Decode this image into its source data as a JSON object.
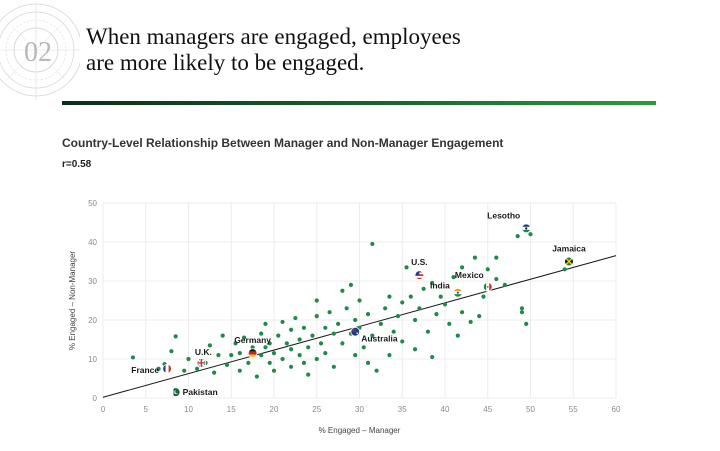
{
  "section_number": "02",
  "headline_lines": [
    "When managers are engaged, employees",
    "are more likely to be engaged."
  ],
  "colors": {
    "accent_dark": "#0b2d17",
    "accent_green": "#2f9a3c",
    "point": "#1f8a4c",
    "trendline": "#1a1a1a"
  },
  "chart_data": {
    "type": "scatter",
    "title": "Country-Level Relationship Between Manager and Non-Manager Engagement",
    "subtitle": "r=0.58",
    "xlabel": "% Engaged – Manager",
    "ylabel": "% Engaged – Non-Manager",
    "xlim": [
      0,
      60
    ],
    "ylim": [
      0,
      50
    ],
    "xticks": [
      0,
      5,
      10,
      15,
      20,
      25,
      30,
      35,
      40,
      45,
      50,
      55,
      60
    ],
    "yticks": [
      0,
      10,
      20,
      30,
      40,
      50
    ],
    "grid": true,
    "trendline": {
      "x": [
        0,
        60
      ],
      "y": [
        0.2,
        36.5
      ]
    },
    "points": [
      [
        3.5,
        10.4
      ],
      [
        6.5,
        7.5
      ],
      [
        7.2,
        8.7
      ],
      [
        8.0,
        12.0
      ],
      [
        8.5,
        15.8
      ],
      [
        9.5,
        7.0
      ],
      [
        10.0,
        10.0
      ],
      [
        11.0,
        7.5
      ],
      [
        12.0,
        9.0
      ],
      [
        12.5,
        13.5
      ],
      [
        13.0,
        6.5
      ],
      [
        13.5,
        11.0
      ],
      [
        14.0,
        16.0
      ],
      [
        14.5,
        8.5
      ],
      [
        15.0,
        11.0
      ],
      [
        15.5,
        14.0
      ],
      [
        16.0,
        7.0
      ],
      [
        16.0,
        11.5
      ],
      [
        16.5,
        15.5
      ],
      [
        17.0,
        9.0
      ],
      [
        17.5,
        13.0
      ],
      [
        18.0,
        5.5
      ],
      [
        18.5,
        11.0
      ],
      [
        18.5,
        16.5
      ],
      [
        19.0,
        13.0
      ],
      [
        19.0,
        19.0
      ],
      [
        19.5,
        9.0
      ],
      [
        19.5,
        14.0
      ],
      [
        20.0,
        7.0
      ],
      [
        20.0,
        11.5
      ],
      [
        20.5,
        16.0
      ],
      [
        21.0,
        10.0
      ],
      [
        21.0,
        19.5
      ],
      [
        21.5,
        14.0
      ],
      [
        22.0,
        8.0
      ],
      [
        22.0,
        12.5
      ],
      [
        22.0,
        17.5
      ],
      [
        22.5,
        20.5
      ],
      [
        23.0,
        11.0
      ],
      [
        23.0,
        15.0
      ],
      [
        23.5,
        9.0
      ],
      [
        23.5,
        18.0
      ],
      [
        24.0,
        13.0
      ],
      [
        24.0,
        6.0
      ],
      [
        24.5,
        16.0
      ],
      [
        25.0,
        10.0
      ],
      [
        25.0,
        21.0
      ],
      [
        25.0,
        25.0
      ],
      [
        25.5,
        14.0
      ],
      [
        26.0,
        18.0
      ],
      [
        26.0,
        11.5
      ],
      [
        26.5,
        22.0
      ],
      [
        27.0,
        16.5
      ],
      [
        27.0,
        8.0
      ],
      [
        27.5,
        19.0
      ],
      [
        28.0,
        27.5
      ],
      [
        28.0,
        14.0
      ],
      [
        28.5,
        23.0
      ],
      [
        29.0,
        16.5
      ],
      [
        29.0,
        29.0
      ],
      [
        29.5,
        20.0
      ],
      [
        29.5,
        11.0
      ],
      [
        30.0,
        18.0
      ],
      [
        30.0,
        25.0
      ],
      [
        30.5,
        13.0
      ],
      [
        31.0,
        9.0
      ],
      [
        31.0,
        21.5
      ],
      [
        31.5,
        39.5
      ],
      [
        31.5,
        16.0
      ],
      [
        32.0,
        7.0
      ],
      [
        32.5,
        19.0
      ],
      [
        33.0,
        23.0
      ],
      [
        33.5,
        26.0
      ],
      [
        34.0,
        17.0
      ],
      [
        34.5,
        21.0
      ],
      [
        35.0,
        24.5
      ],
      [
        35.0,
        14.5
      ],
      [
        35.5,
        33.5
      ],
      [
        36.0,
        26.0
      ],
      [
        36.5,
        20.0
      ],
      [
        37.0,
        23.0
      ],
      [
        37.5,
        28.0
      ],
      [
        38.0,
        17.0
      ],
      [
        38.5,
        29.5
      ],
      [
        39.0,
        21.5
      ],
      [
        39.5,
        26.0
      ],
      [
        40.0,
        24.0
      ],
      [
        40.5,
        19.0
      ],
      [
        41.0,
        31.0
      ],
      [
        41.5,
        16.0
      ],
      [
        42.0,
        33.5
      ],
      [
        42.0,
        22.0
      ],
      [
        43.0,
        19.5
      ],
      [
        43.5,
        36.0
      ],
      [
        44.0,
        21.0
      ],
      [
        44.5,
        26.0
      ],
      [
        45.0,
        33.0
      ],
      [
        46.0,
        30.5
      ],
      [
        46.0,
        36.0
      ],
      [
        47.0,
        29.0
      ],
      [
        48.5,
        41.5
      ],
      [
        49.0,
        23.0
      ],
      [
        49.0,
        22.0
      ],
      [
        49.5,
        19.0
      ],
      [
        50.0,
        42.0
      ],
      [
        54.0,
        33.0
      ],
      [
        36.5,
        12.5
      ],
      [
        38.5,
        10.5
      ],
      [
        33.5,
        11.0
      ]
    ],
    "highlighted": [
      {
        "label": "Lesotho",
        "x": 49.5,
        "y": 43.5,
        "flag": "lesotho"
      },
      {
        "label": "Jamaica",
        "x": 54.5,
        "y": 35.0,
        "flag": "jamaica"
      },
      {
        "label": "U.S.",
        "x": 37.0,
        "y": 31.5,
        "flag": "us"
      },
      {
        "label": "Mexico",
        "x": 45.0,
        "y": 28.5,
        "flag": "mexico"
      },
      {
        "label": "India",
        "x": 41.5,
        "y": 27.0,
        "flag": "india"
      },
      {
        "label": "Australia",
        "x": 29.5,
        "y": 17.0,
        "flag": "australia"
      },
      {
        "label": "Germany",
        "x": 17.5,
        "y": 11.5,
        "flag": "germany"
      },
      {
        "label": "U.K.",
        "x": 11.5,
        "y": 9.0,
        "flag": "uk"
      },
      {
        "label": "France",
        "x": 7.5,
        "y": 7.5,
        "flag": "france"
      },
      {
        "label": "Pakistan",
        "x": 8.5,
        "y": 1.5,
        "flag": "pakistan"
      }
    ]
  }
}
